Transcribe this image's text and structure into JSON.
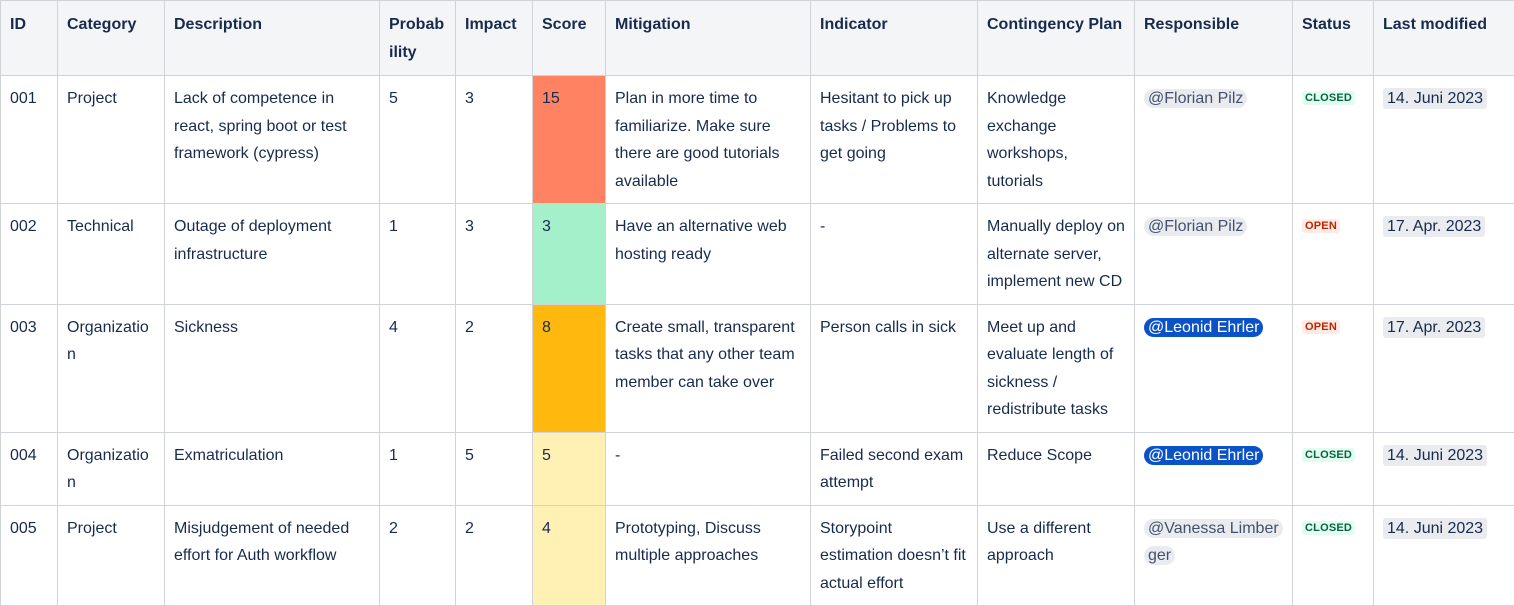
{
  "table": {
    "headers": [
      "ID",
      "Category",
      "Description",
      "Probability",
      "Impact",
      "Score",
      "Mitigation",
      "Indicator",
      "Contingency Plan",
      "Responsible",
      "Status",
      "Last modified"
    ],
    "rows": [
      {
        "id": "001",
        "category": "Project",
        "description": "Lack of competence in react, spring boot or test framework (cypress)",
        "probability": "5",
        "impact": "3",
        "score": "15",
        "score_color": "#ff8263",
        "mitigation": "Plan in more time to familiarize. Make sure there are good tutorials available",
        "indicator": "Hesitant to pick up tasks / Problems to get going",
        "contingency": "Knowledge exchange workshops, tutorials",
        "responsible": "@Florian Pilz",
        "status": "CLOSED",
        "last_modified": "14. Juni 2023"
      },
      {
        "id": "002",
        "category": "Technical",
        "description": "Outage of deployment infrastructure",
        "probability": "1",
        "impact": "3",
        "score": "3",
        "score_color": "#a4f0cb",
        "mitigation": "Have an alternative web hosting ready",
        "indicator": "-",
        "contingency": "Manually deploy on alternate server, implement new CD",
        "responsible": "@Florian Pilz",
        "status": "OPEN",
        "last_modified": "17. Apr. 2023"
      },
      {
        "id": "003",
        "category": "Organization",
        "description": "Sickness",
        "probability": "4",
        "impact": "2",
        "score": "8",
        "score_color": "#ffb80e",
        "mitigation": "Create small, transparent tasks that any other team member can take over",
        "indicator": "Person calls in sick",
        "contingency": "Meet up and evaluate length of sickness / redistribute tasks",
        "responsible": "@Leonid Ehrler",
        "status": "OPEN",
        "last_modified": "17. Apr. 2023"
      },
      {
        "id": "004",
        "category": "Organization",
        "description": "Exmatriculation",
        "probability": "1",
        "impact": "5",
        "score": "5",
        "score_color": "#fff0b3",
        "mitigation": "-",
        "indicator": "Failed second exam attempt",
        "contingency": "Reduce Scope",
        "responsible": "@Leonid Ehrler",
        "status": "CLOSED",
        "last_modified": "14. Juni 2023"
      },
      {
        "id": "005",
        "category": "Project",
        "description": "Misjudgement of needed effort for Auth workflow",
        "probability": "2",
        "impact": "2",
        "score": "4",
        "score_color": "#fff0b3",
        "mitigation": "Prototyping, Discuss multiple approaches",
        "indicator": "Storypoint estimation doesn’t fit actual effort",
        "contingency": "Use a different approach",
        "responsible": "@Vanessa Limberger",
        "status": "CLOSED",
        "last_modified": "14. Juni 2023"
      }
    ]
  }
}
